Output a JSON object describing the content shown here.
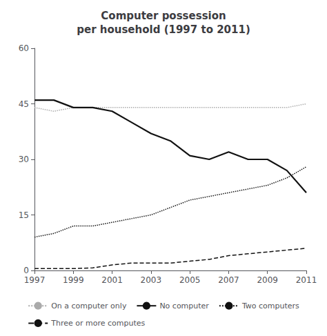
{
  "chart_data": {
    "type": "line",
    "title": "Computer possession\nper household (1997 to 2011)",
    "x": [
      1997,
      1998,
      1999,
      2000,
      2001,
      2002,
      2003,
      2004,
      2005,
      2006,
      2007,
      2008,
      2009,
      2010,
      2011
    ],
    "series": [
      {
        "name": "On a computer only",
        "color": "#aaaaaa",
        "line_style": "dotted",
        "values": [
          44,
          43,
          44,
          44,
          44,
          44,
          44,
          44,
          44,
          44,
          44,
          44,
          44,
          44,
          45
        ]
      },
      {
        "name": "No computer",
        "color": "#111111",
        "line_style": "solid",
        "values": [
          46,
          46,
          44,
          44,
          43,
          40,
          37,
          35,
          31,
          30,
          32,
          30,
          30,
          27,
          21
        ]
      },
      {
        "name": "Two computers",
        "color": "#111111",
        "line_style": "dotted",
        "values": [
          9,
          10,
          12,
          12,
          13,
          14,
          15,
          17,
          19,
          20,
          21,
          22,
          23,
          25,
          28
        ]
      },
      {
        "name": "Three or more computes",
        "color": "#111111",
        "line_style": "dashed",
        "values": [
          0.5,
          0.5,
          0.5,
          0.7,
          1.5,
          2,
          2,
          2,
          2.5,
          3,
          4,
          4.5,
          5,
          5.5,
          6
        ]
      }
    ],
    "xlim": [
      1997,
      2011
    ],
    "xticks": [
      1997,
      1999,
      2001,
      2003,
      2005,
      2007,
      2009,
      2011
    ],
    "ylim": [
      0,
      60
    ],
    "yticks": [
      0,
      15,
      30,
      45,
      60
    ],
    "grid": false,
    "legend": "bottom"
  }
}
